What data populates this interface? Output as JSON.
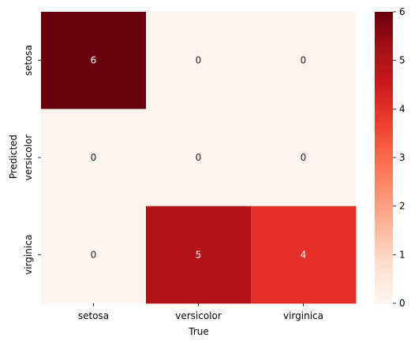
{
  "chart_data": {
    "type": "heatmap",
    "title": "",
    "xlabel": "True",
    "ylabel": "Predicted",
    "x_categories": [
      "setosa",
      "versicolor",
      "virginica"
    ],
    "y_categories": [
      "setosa",
      "versicolor",
      "virginica"
    ],
    "matrix": [
      [
        6,
        0,
        0
      ],
      [
        0,
        0,
        0
      ],
      [
        0,
        5,
        4
      ]
    ],
    "colormap": "Reds",
    "colorbar": {
      "vmin": 0,
      "vmax": 6,
      "ticks": [
        0,
        1,
        2,
        3,
        4,
        5,
        6
      ]
    },
    "annotations": true
  }
}
